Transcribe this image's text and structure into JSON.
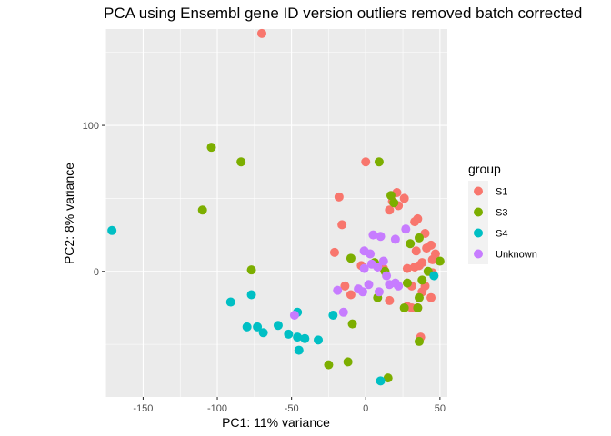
{
  "chart_data": {
    "type": "scatter",
    "title": "PCA using Ensembl gene ID version outliers removed batch corrected",
    "xlabel": "PC1: 11% variance",
    "ylabel": "PC2: 8% variance",
    "xlim": [
      -176,
      55
    ],
    "ylim": [
      -86,
      166
    ],
    "xticks": [
      -150,
      -100,
      -50,
      0,
      50
    ],
    "yticks": [
      0,
      100
    ],
    "legend_title": "group",
    "legend_position": "right",
    "grid": true,
    "series": [
      {
        "name": "S1",
        "color": "#F8766D",
        "points": [
          [
            -70,
            163
          ],
          [
            0,
            75
          ],
          [
            -18,
            51
          ],
          [
            21,
            54
          ],
          [
            26,
            50
          ],
          [
            18,
            48
          ],
          [
            16,
            42
          ],
          [
            22,
            45
          ],
          [
            -16,
            32
          ],
          [
            35,
            36
          ],
          [
            33,
            34
          ],
          [
            40,
            26
          ],
          [
            44,
            18
          ],
          [
            41,
            16
          ],
          [
            34,
            14
          ],
          [
            47,
            12
          ],
          [
            -21,
            13
          ],
          [
            45,
            8
          ],
          [
            38,
            6
          ],
          [
            36,
            4
          ],
          [
            33,
            3
          ],
          [
            -3,
            4
          ],
          [
            12,
            2
          ],
          [
            28,
            2
          ],
          [
            45,
            -1
          ],
          [
            40,
            -10
          ],
          [
            -14,
            -10
          ],
          [
            -10,
            -16
          ],
          [
            31,
            -10
          ],
          [
            16,
            -20
          ],
          [
            38,
            -14
          ],
          [
            44,
            -18
          ],
          [
            28,
            -24
          ],
          [
            31,
            -25
          ],
          [
            35,
            -25
          ],
          [
            37,
            -45
          ]
        ]
      },
      {
        "name": "S3",
        "color": "#7CAE00",
        "points": [
          [
            -104,
            85
          ],
          [
            -84,
            75
          ],
          [
            9,
            75
          ],
          [
            -110,
            42
          ],
          [
            17,
            52
          ],
          [
            19,
            47
          ],
          [
            36,
            23
          ],
          [
            30,
            19
          ],
          [
            -10,
            9
          ],
          [
            6,
            6
          ],
          [
            -77,
            1
          ],
          [
            50,
            7
          ],
          [
            42,
            0
          ],
          [
            13,
            0
          ],
          [
            28,
            -8
          ],
          [
            38,
            -6
          ],
          [
            8,
            -18
          ],
          [
            36,
            -18
          ],
          [
            35,
            -25
          ],
          [
            26,
            -25
          ],
          [
            -9,
            -36
          ],
          [
            36,
            -48
          ],
          [
            -12,
            -62
          ],
          [
            -25,
            -64
          ],
          [
            15,
            -73
          ]
        ]
      },
      {
        "name": "S4",
        "color": "#00BFC4",
        "points": [
          [
            -171,
            28
          ],
          [
            -77,
            -16
          ],
          [
            -91,
            -21
          ],
          [
            -46,
            -28
          ],
          [
            -22,
            -30
          ],
          [
            -59,
            -37
          ],
          [
            -73,
            -38
          ],
          [
            -80,
            -38
          ],
          [
            -69,
            -42
          ],
          [
            -52,
            -43
          ],
          [
            -46,
            -45
          ],
          [
            -41,
            -46
          ],
          [
            -32,
            -47
          ],
          [
            -45,
            -54
          ],
          [
            10,
            -75
          ],
          [
            46,
            -3
          ]
        ]
      },
      {
        "name": "Unknown",
        "color": "#C77CFF",
        "points": [
          [
            27,
            29
          ],
          [
            5,
            25
          ],
          [
            10,
            24
          ],
          [
            20,
            22
          ],
          [
            3,
            12
          ],
          [
            -1,
            14
          ],
          [
            12,
            7
          ],
          [
            8,
            3
          ],
          [
            -1,
            2
          ],
          [
            4,
            5
          ],
          [
            14,
            -3
          ],
          [
            2,
            -9
          ],
          [
            16,
            -9
          ],
          [
            22,
            -10
          ],
          [
            20,
            -8
          ],
          [
            -5,
            -12
          ],
          [
            -2,
            -14
          ],
          [
            9,
            -14
          ],
          [
            -19,
            -13
          ],
          [
            -15,
            -28
          ],
          [
            -48,
            -30
          ]
        ]
      }
    ]
  }
}
